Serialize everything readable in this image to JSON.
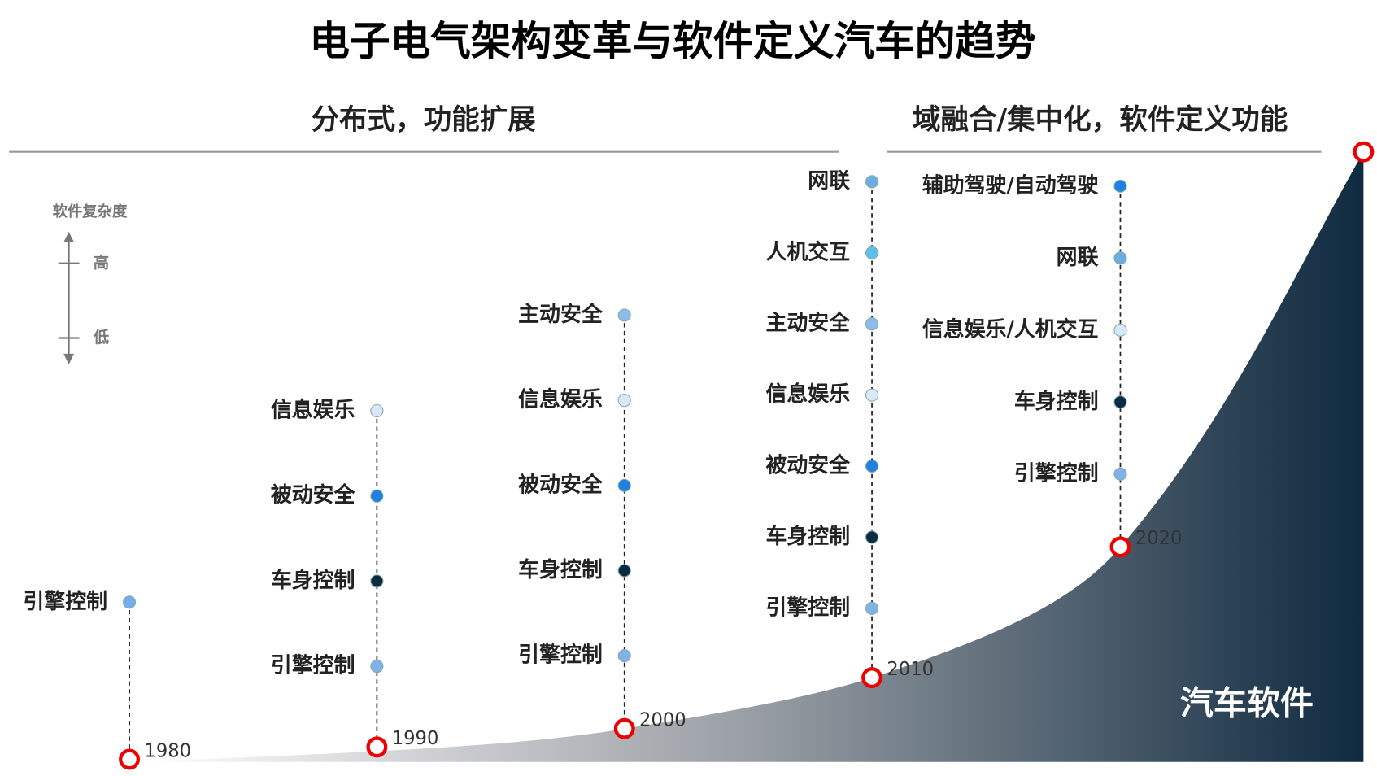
{
  "title": "电子电气架构变革与软件定义汽车的趋势",
  "sections": [
    "分布式，功能扩展",
    "域融合/集中化，软件定义功能"
  ],
  "legend": {
    "title": "软件复杂度",
    "high": "高",
    "low": "低"
  },
  "area_label": "汽车软件",
  "columns": [
    {
      "year": "1980",
      "items": [
        {
          "label": "引擎控制",
          "color": "#74aee8"
        }
      ]
    },
    {
      "year": "1990",
      "items": [
        {
          "label": "信息娱乐",
          "color": "#d9e8f7"
        },
        {
          "label": "被动安全",
          "color": "#1f80e2"
        },
        {
          "label": "车身控制",
          "color": "#0d2b40"
        },
        {
          "label": "引擎控制",
          "color": "#7fb3e8"
        }
      ]
    },
    {
      "year": "2000",
      "items": [
        {
          "label": "主动安全",
          "color": "#8dbce8"
        },
        {
          "label": "信息娱乐",
          "color": "#d9e8f7"
        },
        {
          "label": "被动安全",
          "color": "#1f80e2"
        },
        {
          "label": "车身控制",
          "color": "#0d2b40"
        },
        {
          "label": "引擎控制",
          "color": "#7fb3e8"
        }
      ]
    },
    {
      "year": "2010",
      "items": [
        {
          "label": "网联",
          "color": "#6aaee0"
        },
        {
          "label": "人机交互",
          "color": "#5cc0ea"
        },
        {
          "label": "主动安全",
          "color": "#8dbce8"
        },
        {
          "label": "信息娱乐",
          "color": "#d9e8f7"
        },
        {
          "label": "被动安全",
          "color": "#1f80e2"
        },
        {
          "label": "车身控制",
          "color": "#0d2b40"
        },
        {
          "label": "引擎控制",
          "color": "#7fb3e8"
        }
      ]
    },
    {
      "year": "2020",
      "items": [
        {
          "label": "辅助驾驶/自动驾驶",
          "color": "#1f80e2"
        },
        {
          "label": "网联",
          "color": "#6aaee0"
        },
        {
          "label": "信息娱乐/人机交互",
          "color": "#d9e8f7"
        },
        {
          "label": "车身控制",
          "color": "#0d2b40"
        },
        {
          "label": "引擎控制",
          "color": "#7fb3e8"
        }
      ]
    }
  ]
}
